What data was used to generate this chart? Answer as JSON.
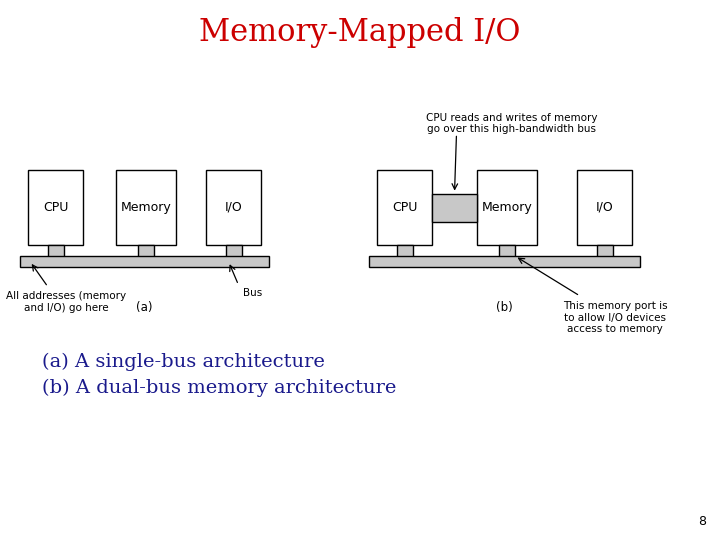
{
  "title": "Memory-Mapped I/O",
  "title_color": "#cc0000",
  "title_fontsize": 22,
  "subtitle1": "(a) A single-bus architecture",
  "subtitle2": "(b) A dual-bus memory architecture",
  "subtitle_color": "#1a1a8c",
  "subtitle_fontsize": 14,
  "page_number": "8",
  "bg_color": "#ffffff",
  "box_edge_color": "#000000",
  "box_face_color": "#ffffff",
  "gray_color": "#c8c8c8",
  "annotation_fontsize": 7.5,
  "label_fontsize": 9,
  "small_label_fontsize": 8
}
